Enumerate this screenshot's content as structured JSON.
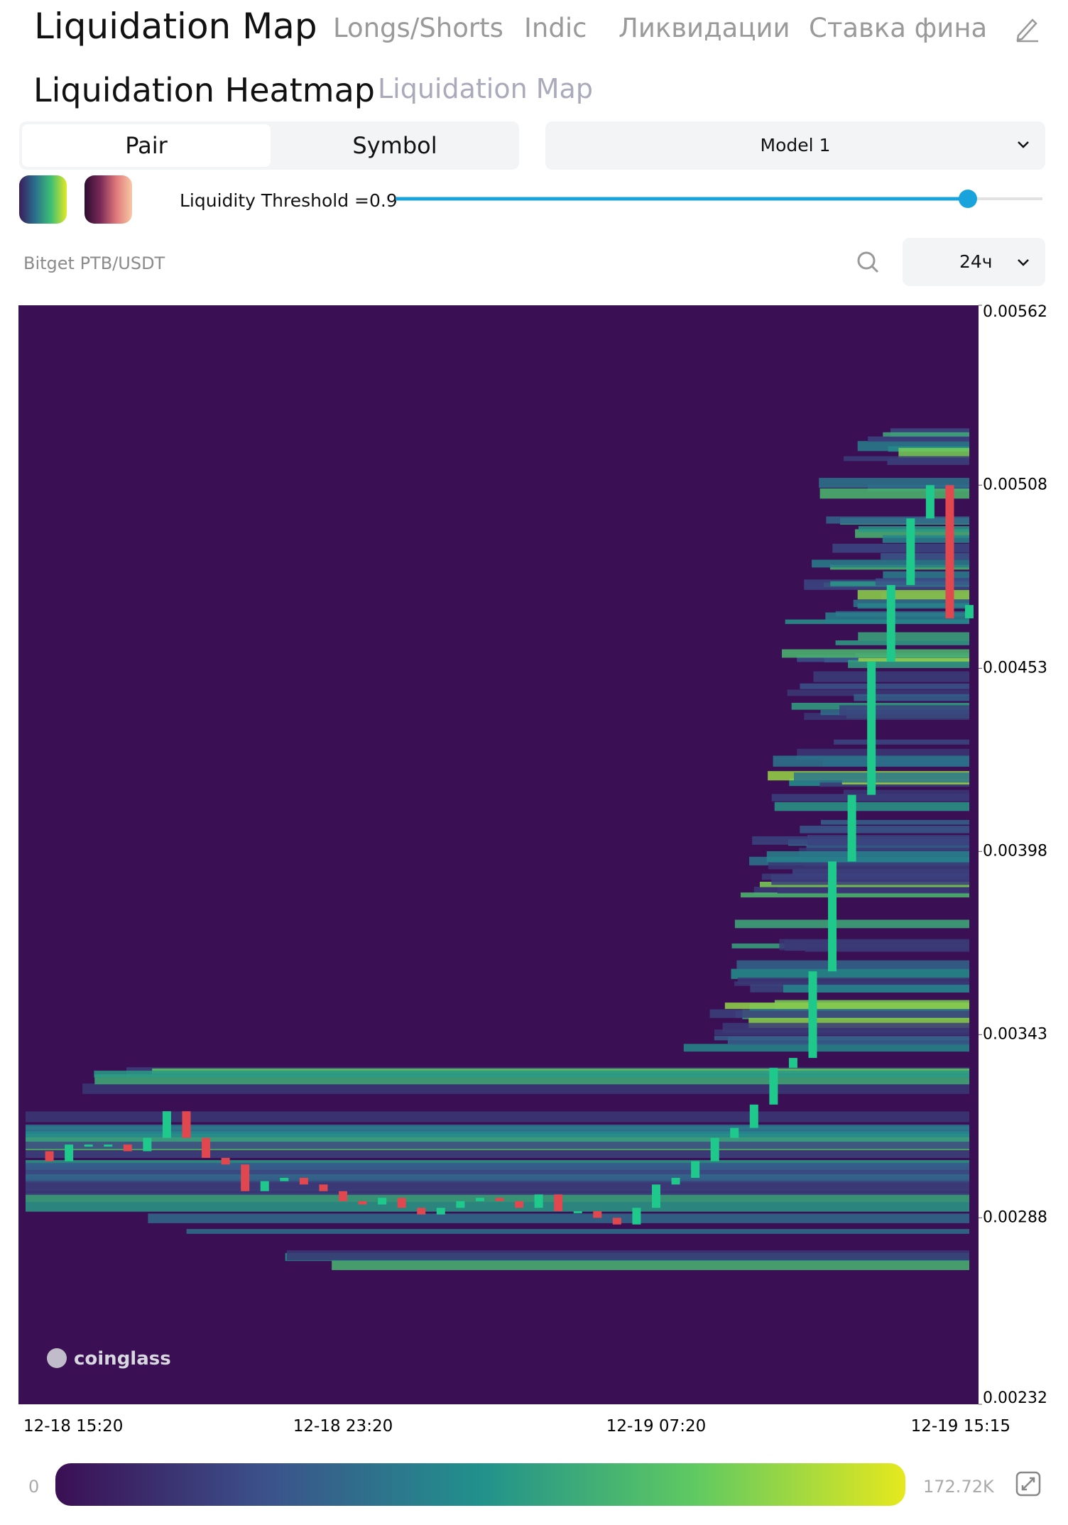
{
  "nav": {
    "title": "Liquidation Map",
    "tabs": [
      "Longs/Shorts",
      "Indic",
      "Ликвидации",
      "Ставка финан"
    ]
  },
  "subnav": {
    "active": "Liquidation Heatmap",
    "other": "Liquidation Map"
  },
  "controls": {
    "segments": [
      "Pair",
      "Symbol"
    ],
    "model": "Model 1",
    "threshold": "Liquidity Threshold =0.9",
    "pair": "Bitget PTB/USDT",
    "interval": "24ч"
  },
  "chart_data": {
    "type": "heatmap",
    "watermark": "coinglass",
    "categories": [
      "12-18 15:20",
      null,
      null,
      null,
      null,
      null,
      null,
      null,
      null,
      null,
      null,
      null,
      null,
      null,
      null,
      null,
      "12-18 23:20",
      null,
      null,
      null,
      null,
      null,
      null,
      null,
      null,
      null,
      null,
      null,
      null,
      null,
      null,
      null,
      "12-19 07:20",
      null,
      null,
      null,
      null,
      null,
      null,
      null,
      null,
      null,
      null,
      null,
      null,
      null,
      null,
      null,
      "12-19 15:15"
    ],
    "values": [
      0.00308,
      0.00305,
      0.0031,
      0.0031,
      0.0031,
      0.00308,
      0.00312,
      0.0032,
      0.00312,
      0.00306,
      0.00304,
      0.00296,
      0.00299,
      0.003,
      0.00298,
      0.00296,
      0.00293,
      0.00292,
      0.00294,
      0.00291,
      0.00289,
      0.00291,
      0.00293,
      0.00294,
      0.00293,
      0.00291,
      0.00295,
      0.0029,
      0.0029,
      0.00288,
      0.00286,
      0.00291,
      0.00298,
      0.003,
      0.00305,
      0.00312,
      0.00315,
      0.00322,
      0.00333,
      0.00336,
      0.00362,
      0.00395,
      0.00415,
      0.00455,
      0.00478,
      0.00498,
      0.00508,
      0.00468,
      0.00472
    ],
    "color_up": "#1fc98c",
    "color_down": "#e0474f",
    "background": "#3a0f54",
    "ylim": [
      0.00232,
      0.00562
    ],
    "yticks": [
      0.00232,
      0.00288,
      0.00343,
      0.00398,
      0.00453,
      0.00508,
      0.00562
    ],
    "colorbar_ticks": [
      0,
      {
        "value": 172720,
        "label": "172.72K"
      }
    ]
  }
}
